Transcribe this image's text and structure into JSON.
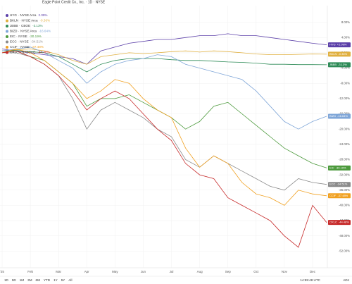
{
  "chart_data": {
    "type": "line",
    "title": "Eagle Point Credit Co., Inc. · 1D · NYSE",
    "categories": [
      "'25",
      null,
      "Feb",
      null,
      "Mar",
      null,
      "Apr",
      null,
      "May",
      null,
      "Jun",
      null,
      "Jul",
      null,
      "Aug",
      null,
      "Sep",
      null,
      "Oct",
      null,
      "Nov",
      null,
      "Dec",
      null
    ],
    "ylim": [
      -56,
      12
    ],
    "yticks": [
      {
        "value": 8,
        "label": "8.00%"
      },
      {
        "value": 4,
        "label": "4.00%"
      },
      {
        "value": 0,
        "label": "0.00%"
      },
      {
        "value": -4,
        "label": "-4.00%"
      },
      {
        "value": -8,
        "label": "-8.00%"
      },
      {
        "value": -12,
        "label": "-12.00%"
      },
      {
        "value": -16,
        "label": "-16.00%"
      },
      {
        "value": -20,
        "label": "-20.00%"
      },
      {
        "value": -24,
        "label": "-24.00%"
      },
      {
        "value": -28,
        "label": "-28.00%"
      },
      {
        "value": -32,
        "label": "-32.00%"
      },
      {
        "value": -36,
        "label": "-36.00%"
      },
      {
        "value": -40,
        "label": "-40.00%"
      },
      {
        "value": -44,
        "label": "-44.00%"
      },
      {
        "value": -48,
        "label": "-48.00%"
      },
      {
        "value": -52,
        "label": "-52.00%"
      }
    ],
    "grid": true,
    "series": [
      {
        "name": "HYG",
        "exchange": "NYSE Arca",
        "color": "#5b3fa8",
        "legend_value": "2.09%",
        "tag": "+2.09%",
        "values": [
          1,
          0.5,
          0,
          -0.5,
          -1,
          -1.5,
          -3,
          0.5,
          1.5,
          2.5,
          3,
          3.5,
          3.5,
          4,
          4.5,
          4.5,
          5,
          4.5,
          4.5,
          4,
          3.5,
          3,
          2.5,
          2.09
        ]
      },
      {
        "name": "BKLN",
        "exchange": "NYSE Arca",
        "color": "#e0b040",
        "legend_value": "-0.36%",
        "tag": "-0.36%",
        "values": [
          0.5,
          0.8,
          1,
          0.5,
          -0.5,
          -2,
          -3,
          -1,
          -0.5,
          0,
          -0.2,
          0,
          0.3,
          0.5,
          0.2,
          0.5,
          0.3,
          0,
          -0.3,
          -0.5,
          -0.5,
          -0.4,
          -0.3,
          -0.36
        ]
      },
      {
        "name": "JBBB",
        "exchange": "CBOE",
        "color": "#2e8b57",
        "legend_value": "-3.13%",
        "tag": "-3.13%",
        "values": [
          0.5,
          0.6,
          0.3,
          0,
          -1,
          -3,
          -5,
          -3,
          -2,
          -1.5,
          -1.5,
          -1.5,
          -1.8,
          -2,
          -2,
          -2.2,
          -2.4,
          -2.5,
          -2.7,
          -3,
          -3,
          -3.1,
          -3.1,
          -3.13
        ]
      },
      {
        "name": "BIZD",
        "exchange": "NYSE Arca",
        "color": "#7fa6d8",
        "legend_value": "-16.64%",
        "tag": "-16.64%",
        "values": [
          0.5,
          1,
          1.5,
          0,
          -2,
          -4,
          -8,
          -5,
          -3,
          -2,
          -1.5,
          -0.5,
          -1,
          -3,
          -4,
          -5,
          -6,
          -7,
          -10,
          -14,
          -18,
          -20,
          -18,
          -16.64
        ]
      },
      {
        "name": "EIC",
        "exchange": "NYSE",
        "color": "#4c9a3c",
        "legend_value": "-30.19%",
        "tag": "-30.19%",
        "values": [
          0,
          0.5,
          -1,
          -2,
          -5,
          -8,
          -14,
          -12,
          -12,
          -11,
          -13,
          -15,
          -17,
          -20,
          -18,
          -14,
          -13,
          -16,
          -19,
          -22,
          -25,
          -27,
          -29,
          -30.19
        ]
      },
      {
        "name": "ECC",
        "exchange": "NYSE",
        "color": "#8a8a8a",
        "legend_value": "-34.51%",
        "tag": "-34.51%",
        "values": [
          0,
          0,
          -1,
          -3,
          -6,
          -12,
          -20,
          -15,
          -13,
          -15,
          -17,
          -20,
          -22,
          -28,
          -30,
          -27,
          -29,
          -31,
          -33,
          -35,
          -36,
          -33,
          -34,
          -34.51
        ]
      },
      {
        "name": "CCIF",
        "exchange": "NYSE",
        "color": "#f0a020",
        "legend_value": "-37.48%",
        "tag": "-37.48%",
        "values": [
          0,
          1,
          0,
          -2,
          -5,
          -8,
          -12,
          -10,
          -7,
          -8,
          -12,
          -15,
          -17,
          -25,
          -30,
          -27,
          -29,
          -34,
          -37,
          -38,
          -40,
          -36,
          -37,
          -37.48
        ]
      },
      {
        "name": "OXLC",
        "exchange": "NASDAQ",
        "color": "#c62828",
        "legend_value": "-44.48%",
        "tag": "-44.48%",
        "values": [
          0,
          0.5,
          -1,
          -3,
          -6,
          -10,
          -15,
          -12,
          -10,
          -12,
          -16,
          -20,
          -23,
          -29,
          -32,
          -33,
          -38,
          -40,
          -42,
          -44,
          -48,
          -51,
          -40,
          -44.48
        ]
      }
    ]
  },
  "toolbar": {
    "ranges": [
      "1D",
      "5D",
      "1M",
      "3M",
      "6M",
      "YTD",
      "1Y",
      "5Y",
      "All"
    ],
    "time": "14:55:48 UTC",
    "adj": "ADJ"
  }
}
